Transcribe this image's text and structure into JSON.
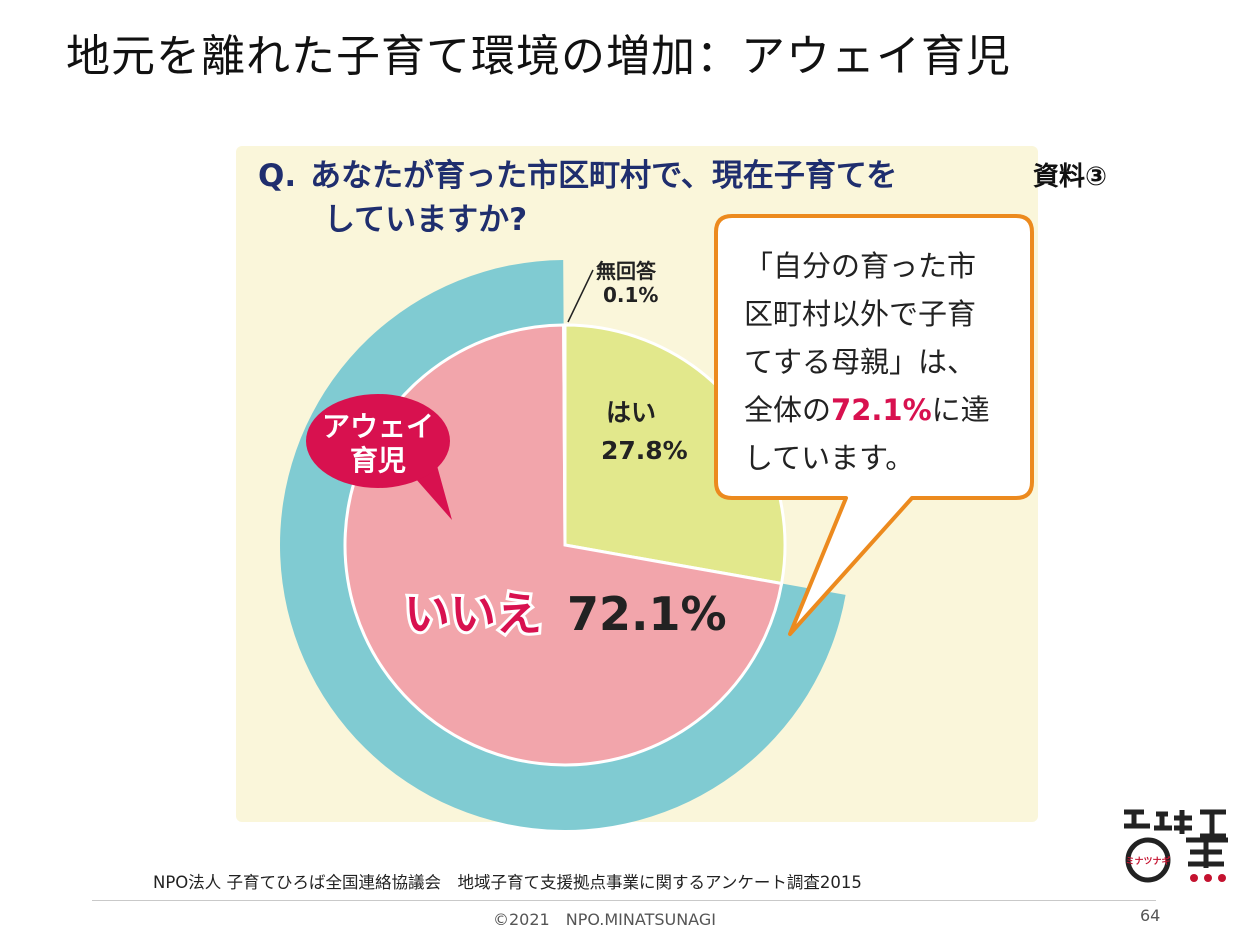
{
  "slide": {
    "title": "地元を離れた子育て環境の増加：アウェイ育児",
    "source": "NPO法人 子育てひろば全国連絡協議会　地域子育て支援拠点事業に関するアンケート調査2015",
    "copyright": "©2021　NPO.MINATSUNAGI",
    "page_number": "64"
  },
  "figure": {
    "reference": "資料③",
    "question_mark": "Q.",
    "question_line1": "あなたが育った市区町村で、現在子育てを",
    "question_line2": "していますか?",
    "away_label_line1": "アウェイ",
    "away_label_line2": "育児",
    "callout_line1": "「自分の育った市",
    "callout_line2": "区町村以外で子育",
    "callout_line3": "てする母親」は、",
    "callout_line4_pre": "全体の",
    "callout_line4_pct": "72.1%",
    "callout_line4_post": "に達",
    "callout_line5": "しています。"
  },
  "logo": {
    "text": "ミナツナギ"
  },
  "chart_data": {
    "type": "pie",
    "title": "Q. あなたが育った市区町村で、現在子育てをしていますか?",
    "slices": [
      {
        "label": "はい",
        "value": 27.8,
        "display": "27.8%",
        "color": "#e2e88c"
      },
      {
        "label": "いいえ",
        "value": 72.1,
        "display": "72.1%",
        "color": "#f2a5ab"
      },
      {
        "label": "無回答",
        "value": 0.1,
        "display": "0.1%",
        "color": "#ffffff"
      }
    ],
    "highlight_ring": {
      "slice": "いいえ",
      "color": "#80cbd2"
    },
    "legend": "none"
  }
}
